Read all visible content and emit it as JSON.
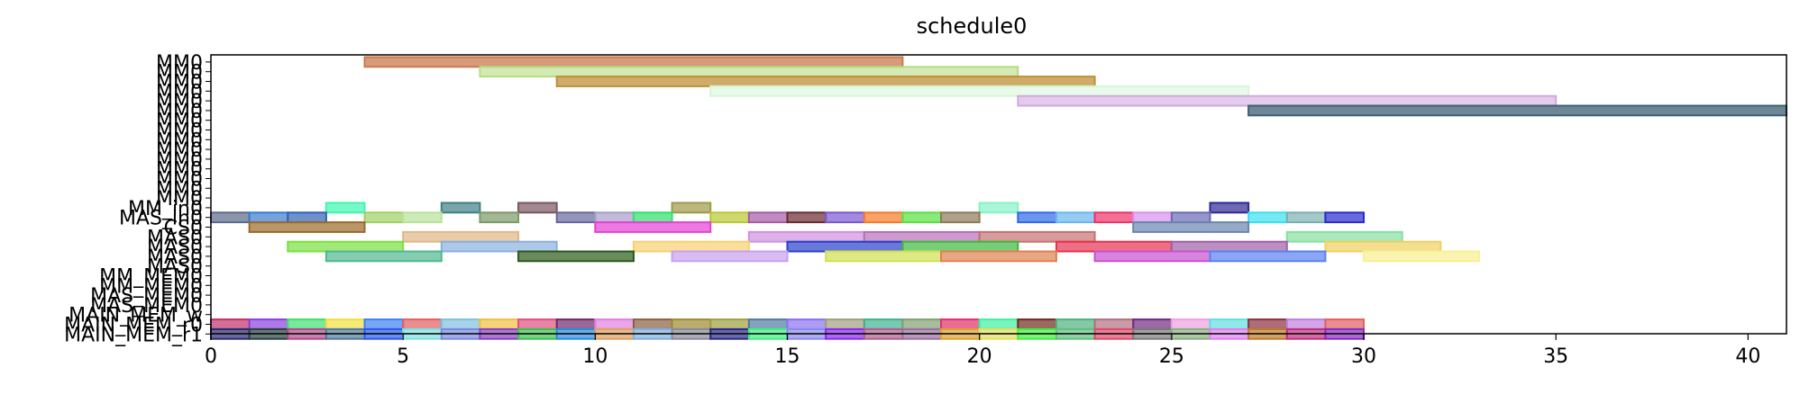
{
  "chart_data": {
    "type": "gantt",
    "title": "schedule0",
    "xlim": [
      0,
      41
    ],
    "x_ticks": [
      0,
      5,
      10,
      15,
      20,
      25,
      30,
      35,
      40
    ],
    "grid": false,
    "y_labels": [
      "MM0",
      "MM0",
      "MM0",
      "MM0",
      "MM0",
      "MM0",
      "MM0",
      "MM0",
      "MM0",
      "MM0",
      "MM0",
      "MM0",
      "MM0",
      "MM0",
      "MM0",
      "MM_in0",
      "MAS_in0",
      "CS0",
      "MAS0",
      "MAS0",
      "MAS0",
      "MAS0",
      "MM_MEM0",
      "MM_MEM0",
      "MAS_MEM0",
      "MAS_MEM0",
      "MAIN_MEM_w",
      "MAIN_MEM_r0",
      "MAIN_MEM_r1"
    ],
    "tasks": [
      {
        "row": 0,
        "start": 4,
        "end": 18,
        "color": "#c97a4f",
        "alpha": 0.75
      },
      {
        "row": 1,
        "start": 7,
        "end": 21,
        "color": "#b5dc84",
        "alpha": 0.6
      },
      {
        "row": 2,
        "start": 9,
        "end": 23,
        "color": "#bf9136",
        "alpha": 0.75
      },
      {
        "row": 3,
        "start": 13,
        "end": 27,
        "color": "#d6f7d8",
        "alpha": 0.55
      },
      {
        "row": 4,
        "start": 21,
        "end": 35,
        "color": "#d2a8de",
        "alpha": 0.6
      },
      {
        "row": 5,
        "start": 27,
        "end": 41,
        "color": "#3d5f73",
        "alpha": 0.75
      },
      {
        "row": 15,
        "start": 3,
        "end": 4,
        "color": "#3ef7b0",
        "alpha": 0.7
      },
      {
        "row": 15,
        "start": 6,
        "end": 7,
        "color": "#3f7f86",
        "alpha": 0.7
      },
      {
        "row": 15,
        "start": 8,
        "end": 9,
        "color": "#7a5560",
        "alpha": 0.7
      },
      {
        "row": 15,
        "start": 12,
        "end": 13,
        "color": "#9e9a48",
        "alpha": 0.7
      },
      {
        "row": 15,
        "start": 20,
        "end": 21,
        "color": "#86f2c9",
        "alpha": 0.7
      },
      {
        "row": 15,
        "start": 26,
        "end": 27,
        "color": "#2d2894",
        "alpha": 0.7
      },
      {
        "row": 16,
        "start": 0,
        "end": 1,
        "color": "#5a6a8a",
        "alpha": 0.7
      },
      {
        "row": 16,
        "start": 1,
        "end": 2,
        "color": "#3a7ad0",
        "alpha": 0.7
      },
      {
        "row": 16,
        "start": 2,
        "end": 3,
        "color": "#2f62b8",
        "alpha": 0.7
      },
      {
        "row": 16,
        "start": 4,
        "end": 5,
        "color": "#9fd064",
        "alpha": 0.7
      },
      {
        "row": 16,
        "start": 5,
        "end": 6,
        "color": "#b8e29a",
        "alpha": 0.7
      },
      {
        "row": 16,
        "start": 7,
        "end": 8,
        "color": "#7b9a66",
        "alpha": 0.7
      },
      {
        "row": 16,
        "start": 9,
        "end": 10,
        "color": "#67689c",
        "alpha": 0.7
      },
      {
        "row": 16,
        "start": 10,
        "end": 11,
        "color": "#a69ec9",
        "alpha": 0.7
      },
      {
        "row": 16,
        "start": 11,
        "end": 12,
        "color": "#2fe06a",
        "alpha": 0.7
      },
      {
        "row": 16,
        "start": 13,
        "end": 14,
        "color": "#b8c832",
        "alpha": 0.7
      },
      {
        "row": 16,
        "start": 14,
        "end": 15,
        "color": "#a65aa6",
        "alpha": 0.7
      },
      {
        "row": 16,
        "start": 15,
        "end": 16,
        "color": "#6a2a30",
        "alpha": 0.7
      },
      {
        "row": 16,
        "start": 16,
        "end": 17,
        "color": "#7a58d0",
        "alpha": 0.7
      },
      {
        "row": 16,
        "start": 17,
        "end": 18,
        "color": "#f57a2a",
        "alpha": 0.7
      },
      {
        "row": 16,
        "start": 18,
        "end": 19,
        "color": "#5ae040",
        "alpha": 0.7
      },
      {
        "row": 16,
        "start": 19,
        "end": 20,
        "color": "#8c7a58",
        "alpha": 0.7
      },
      {
        "row": 16,
        "start": 21,
        "end": 22,
        "color": "#2f6ae8",
        "alpha": 0.7
      },
      {
        "row": 16,
        "start": 22,
        "end": 23,
        "color": "#6ab6f0",
        "alpha": 0.7
      },
      {
        "row": 16,
        "start": 23,
        "end": 24,
        "color": "#f0326a",
        "alpha": 0.7
      },
      {
        "row": 16,
        "start": 24,
        "end": 25,
        "color": "#d890f0",
        "alpha": 0.7
      },
      {
        "row": 16,
        "start": 25,
        "end": 26,
        "color": "#6a6ab8",
        "alpha": 0.7
      },
      {
        "row": 16,
        "start": 27,
        "end": 28,
        "color": "#3ae0f0",
        "alpha": 0.7
      },
      {
        "row": 16,
        "start": 28,
        "end": 29,
        "color": "#7ab0b0",
        "alpha": 0.7
      },
      {
        "row": 16,
        "start": 29,
        "end": 30,
        "color": "#2a2ad0",
        "alpha": 0.7
      },
      {
        "row": 17,
        "start": 1,
        "end": 4,
        "color": "#9a6a28",
        "alpha": 0.7
      },
      {
        "row": 17,
        "start": 10,
        "end": 13,
        "color": "#e640d6",
        "alpha": 0.7
      },
      {
        "row": 17,
        "start": 24,
        "end": 27,
        "color": "#6a86b0",
        "alpha": 0.7
      },
      {
        "row": 18,
        "start": 5,
        "end": 8,
        "color": "#e0b886",
        "alpha": 0.7
      },
      {
        "row": 18,
        "start": 14,
        "end": 17,
        "color": "#d090e0",
        "alpha": 0.7
      },
      {
        "row": 18,
        "start": 17,
        "end": 20,
        "color": "#b870b8",
        "alpha": 0.7
      },
      {
        "row": 18,
        "start": 20,
        "end": 23,
        "color": "#c87070",
        "alpha": 0.7
      },
      {
        "row": 18,
        "start": 28,
        "end": 31,
        "color": "#86e0a0",
        "alpha": 0.7
      },
      {
        "row": 19,
        "start": 2,
        "end": 5,
        "color": "#7ae040",
        "alpha": 0.7
      },
      {
        "row": 19,
        "start": 6,
        "end": 9,
        "color": "#8ab0e0",
        "alpha": 0.7
      },
      {
        "row": 19,
        "start": 11,
        "end": 14,
        "color": "#f8d070",
        "alpha": 0.7
      },
      {
        "row": 19,
        "start": 15,
        "end": 18,
        "color": "#2a40c8",
        "alpha": 0.7
      },
      {
        "row": 19,
        "start": 18,
        "end": 21,
        "color": "#40b840",
        "alpha": 0.7
      },
      {
        "row": 19,
        "start": 22,
        "end": 25,
        "color": "#e63250",
        "alpha": 0.7
      },
      {
        "row": 19,
        "start": 25,
        "end": 28,
        "color": "#a060a8",
        "alpha": 0.7
      },
      {
        "row": 19,
        "start": 29,
        "end": 32,
        "color": "#f0d060",
        "alpha": 0.7
      },
      {
        "row": 20,
        "start": 3,
        "end": 6,
        "color": "#50b890",
        "alpha": 0.7
      },
      {
        "row": 20,
        "start": 8,
        "end": 11,
        "color": "#2a5a1a",
        "alpha": 0.7
      },
      {
        "row": 20,
        "start": 12,
        "end": 15,
        "color": "#c8a0f0",
        "alpha": 0.7
      },
      {
        "row": 20,
        "start": 16,
        "end": 19,
        "color": "#d0e050",
        "alpha": 0.7
      },
      {
        "row": 20,
        "start": 19,
        "end": 22,
        "color": "#e08050",
        "alpha": 0.7
      },
      {
        "row": 20,
        "start": 23,
        "end": 26,
        "color": "#c850d0",
        "alpha": 0.7
      },
      {
        "row": 20,
        "start": 26,
        "end": 29,
        "color": "#5a80f0",
        "alpha": 0.7
      },
      {
        "row": 20,
        "start": 30,
        "end": 33,
        "color": "#f8f090",
        "alpha": 0.7
      },
      {
        "row": 27,
        "start": 0,
        "end": 1,
        "color": "#c0306a",
        "alpha": 0.7
      },
      {
        "row": 27,
        "start": 1,
        "end": 2,
        "color": "#8a40e0",
        "alpha": 0.7
      },
      {
        "row": 27,
        "start": 2,
        "end": 3,
        "color": "#40e070",
        "alpha": 0.7
      },
      {
        "row": 27,
        "start": 3,
        "end": 4,
        "color": "#f0e040",
        "alpha": 0.7
      },
      {
        "row": 27,
        "start": 4,
        "end": 5,
        "color": "#4080f0",
        "alpha": 0.7
      },
      {
        "row": 27,
        "start": 5,
        "end": 6,
        "color": "#e06060",
        "alpha": 0.7
      },
      {
        "row": 27,
        "start": 6,
        "end": 7,
        "color": "#80c0e0",
        "alpha": 0.7
      },
      {
        "row": 27,
        "start": 7,
        "end": 8,
        "color": "#f0c040",
        "alpha": 0.7
      },
      {
        "row": 27,
        "start": 8,
        "end": 9,
        "color": "#e05080",
        "alpha": 0.7
      },
      {
        "row": 27,
        "start": 9,
        "end": 10,
        "color": "#702a6a",
        "alpha": 0.7
      },
      {
        "row": 27,
        "start": 10,
        "end": 11,
        "color": "#e080e0",
        "alpha": 0.7
      },
      {
        "row": 27,
        "start": 11,
        "end": 12,
        "color": "#8a6040",
        "alpha": 0.7
      },
      {
        "row": 27,
        "start": 12,
        "end": 13,
        "color": "#a08a30",
        "alpha": 0.7
      },
      {
        "row": 27,
        "start": 13,
        "end": 14,
        "color": "#a0a040",
        "alpha": 0.7
      },
      {
        "row": 27,
        "start": 14,
        "end": 15,
        "color": "#507aa0",
        "alpha": 0.7
      },
      {
        "row": 27,
        "start": 15,
        "end": 16,
        "color": "#8a70f0",
        "alpha": 0.7
      },
      {
        "row": 27,
        "start": 16,
        "end": 17,
        "color": "#a0a080",
        "alpha": 0.7
      },
      {
        "row": 27,
        "start": 17,
        "end": 18,
        "color": "#40b090",
        "alpha": 0.7
      },
      {
        "row": 27,
        "start": 18,
        "end": 19,
        "color": "#80a070",
        "alpha": 0.7
      },
      {
        "row": 27,
        "start": 19,
        "end": 20,
        "color": "#e0306a",
        "alpha": 0.7
      },
      {
        "row": 27,
        "start": 20,
        "end": 21,
        "color": "#40f0a0",
        "alpha": 0.7
      },
      {
        "row": 27,
        "start": 21,
        "end": 22,
        "color": "#702a20",
        "alpha": 0.7
      },
      {
        "row": 27,
        "start": 22,
        "end": 23,
        "color": "#50b080",
        "alpha": 0.7
      },
      {
        "row": 27,
        "start": 23,
        "end": 24,
        "color": "#b07080",
        "alpha": 0.7
      },
      {
        "row": 27,
        "start": 24,
        "end": 25,
        "color": "#702a80",
        "alpha": 0.7
      },
      {
        "row": 27,
        "start": 25,
        "end": 26,
        "color": "#f0a0e0",
        "alpha": 0.7
      },
      {
        "row": 27,
        "start": 26,
        "end": 27,
        "color": "#60e0e0",
        "alpha": 0.7
      },
      {
        "row": 27,
        "start": 27,
        "end": 28,
        "color": "#8a3040",
        "alpha": 0.7
      },
      {
        "row": 27,
        "start": 28,
        "end": 29,
        "color": "#c080e0",
        "alpha": 0.7
      },
      {
        "row": 27,
        "start": 29,
        "end": 30,
        "color": "#e06060",
        "alpha": 0.7
      },
      {
        "row": 28,
        "start": 0,
        "end": 1,
        "color": "#2a2a70",
        "alpha": 0.7
      },
      {
        "row": 28,
        "start": 1,
        "end": 2,
        "color": "#2a4040",
        "alpha": 0.7
      },
      {
        "row": 28,
        "start": 2,
        "end": 3,
        "color": "#b04a8a",
        "alpha": 0.7
      },
      {
        "row": 28,
        "start": 3,
        "end": 4,
        "color": "#507a9a",
        "alpha": 0.7
      },
      {
        "row": 28,
        "start": 4,
        "end": 5,
        "color": "#2a5af0",
        "alpha": 0.7
      },
      {
        "row": 28,
        "start": 5,
        "end": 6,
        "color": "#80e0e0",
        "alpha": 0.7
      },
      {
        "row": 28,
        "start": 6,
        "end": 7,
        "color": "#7a8ae0",
        "alpha": 0.7
      },
      {
        "row": 28,
        "start": 7,
        "end": 8,
        "color": "#8a40c0",
        "alpha": 0.7
      },
      {
        "row": 28,
        "start": 8,
        "end": 9,
        "color": "#40c050",
        "alpha": 0.7
      },
      {
        "row": 28,
        "start": 9,
        "end": 10,
        "color": "#2a8ae0",
        "alpha": 0.7
      },
      {
        "row": 28,
        "start": 10,
        "end": 11,
        "color": "#e0a060",
        "alpha": 0.7
      },
      {
        "row": 28,
        "start": 11,
        "end": 12,
        "color": "#80b0e0",
        "alpha": 0.7
      },
      {
        "row": 28,
        "start": 12,
        "end": 13,
        "color": "#8a8a9a",
        "alpha": 0.7
      },
      {
        "row": 28,
        "start": 13,
        "end": 14,
        "color": "#2a2a8a",
        "alpha": 0.7
      },
      {
        "row": 28,
        "start": 14,
        "end": 15,
        "color": "#40f080",
        "alpha": 0.7
      },
      {
        "row": 28,
        "start": 15,
        "end": 16,
        "color": "#8a8af0",
        "alpha": 0.7
      },
      {
        "row": 28,
        "start": 16,
        "end": 17,
        "color": "#8a2af0",
        "alpha": 0.7
      },
      {
        "row": 28,
        "start": 17,
        "end": 18,
        "color": "#b06090",
        "alpha": 0.7
      },
      {
        "row": 28,
        "start": 18,
        "end": 19,
        "color": "#9a70a0",
        "alpha": 0.7
      },
      {
        "row": 28,
        "start": 19,
        "end": 20,
        "color": "#e0a030",
        "alpha": 0.7
      },
      {
        "row": 28,
        "start": 20,
        "end": 21,
        "color": "#e0e060",
        "alpha": 0.7
      },
      {
        "row": 28,
        "start": 21,
        "end": 22,
        "color": "#40f040",
        "alpha": 0.7
      },
      {
        "row": 28,
        "start": 22,
        "end": 23,
        "color": "#60c080",
        "alpha": 0.7
      },
      {
        "row": 28,
        "start": 23,
        "end": 24,
        "color": "#e04a6a",
        "alpha": 0.7
      },
      {
        "row": 28,
        "start": 24,
        "end": 25,
        "color": "#7a7a7a",
        "alpha": 0.7
      },
      {
        "row": 28,
        "start": 25,
        "end": 26,
        "color": "#8ab080",
        "alpha": 0.7
      },
      {
        "row": 28,
        "start": 26,
        "end": 27,
        "color": "#e080f0",
        "alpha": 0.7
      },
      {
        "row": 28,
        "start": 27,
        "end": 28,
        "color": "#c07a2a",
        "alpha": 0.7
      },
      {
        "row": 28,
        "start": 28,
        "end": 29,
        "color": "#c03080",
        "alpha": 0.7
      },
      {
        "row": 28,
        "start": 29,
        "end": 30,
        "color": "#8a2ac0",
        "alpha": 0.7
      }
    ]
  }
}
